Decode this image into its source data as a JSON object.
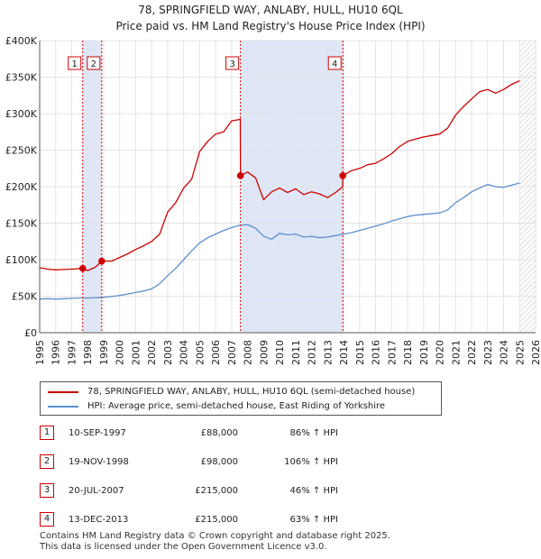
{
  "header": {
    "title_line1": "78, SPRINGFIELD WAY, ANLABY, HULL, HU10 6QL",
    "title_line2": "Price paid vs. HM Land Registry's House Price Index (HPI)"
  },
  "chart_data": {
    "type": "line",
    "title": "78, SPRINGFIELD WAY, ANLABY, HULL, HU10 6QL",
    "subtitle": "Price paid vs. HM Land Registry's House Price Index (HPI)",
    "xlabel": "",
    "ylabel": "",
    "xlim": [
      1995,
      2026
    ],
    "ylim": [
      0,
      400000
    ],
    "x_ticks": [
      1995,
      1996,
      1997,
      1998,
      1999,
      2000,
      2001,
      2002,
      2003,
      2004,
      2005,
      2006,
      2007,
      2008,
      2009,
      2010,
      2011,
      2012,
      2013,
      2014,
      2015,
      2016,
      2017,
      2018,
      2019,
      2020,
      2021,
      2022,
      2023,
      2024,
      2025,
      2026
    ],
    "y_ticks": [
      {
        "value": 0,
        "label": "£0"
      },
      {
        "value": 50000,
        "label": "£50K"
      },
      {
        "value": 100000,
        "label": "£100K"
      },
      {
        "value": 150000,
        "label": "£150K"
      },
      {
        "value": 200000,
        "label": "£200K"
      },
      {
        "value": 250000,
        "label": "£250K"
      },
      {
        "value": 300000,
        "label": "£300K"
      },
      {
        "value": 350000,
        "label": "£350K"
      },
      {
        "value": 400000,
        "label": "£400K"
      }
    ],
    "grid": true,
    "shaded_periods": [
      [
        1997.69,
        1998.88
      ],
      [
        2007.55,
        2013.95
      ]
    ],
    "future_hatch_from": 2025.0,
    "series": [
      {
        "name": "78, SPRINGFIELD WAY, ANLABY, HULL, HU10 6QL (semi-detached house)",
        "color": "#cc0000",
        "x": [
          1995.0,
          1995.5,
          1996.0,
          1996.5,
          1997.0,
          1997.69,
          1998.0,
          1998.5,
          1998.88,
          1999.5,
          2000.0,
          2000.5,
          2001.0,
          2001.5,
          2002.0,
          2002.5,
          2003.0,
          2003.5,
          2004.0,
          2004.5,
          2005.0,
          2005.5,
          2006.0,
          2006.5,
          2007.0,
          2007.5,
          2007.54,
          2007.55,
          2008.0,
          2008.5,
          2009.0,
          2009.5,
          2010.0,
          2010.5,
          2011.0,
          2011.5,
          2012.0,
          2012.5,
          2013.0,
          2013.5,
          2013.94,
          2013.95,
          2014.5,
          2015.0,
          2015.5,
          2016.0,
          2016.5,
          2017.0,
          2017.5,
          2018.0,
          2018.5,
          2019.0,
          2019.5,
          2020.0,
          2020.5,
          2021.0,
          2021.5,
          2022.0,
          2022.5,
          2023.0,
          2023.5,
          2024.0,
          2024.5,
          2025.0
        ],
        "values": [
          89000,
          87000,
          86000,
          86500,
          87000,
          88000,
          85000,
          90000,
          98000,
          98000,
          103000,
          108000,
          114000,
          119000,
          125000,
          135000,
          165000,
          178000,
          198000,
          210000,
          248000,
          262000,
          272000,
          275000,
          290000,
          292000,
          293000,
          215000,
          220000,
          212000,
          182000,
          193000,
          198000,
          192000,
          197000,
          189000,
          193000,
          190000,
          185000,
          192000,
          200000,
          215000,
          222000,
          225000,
          230000,
          232000,
          238000,
          245000,
          255000,
          262000,
          265000,
          268000,
          270000,
          272000,
          280000,
          298000,
          310000,
          320000,
          330000,
          333000,
          328000,
          333000,
          340000,
          345000
        ]
      },
      {
        "name": "HPI: Average price, semi-detached house, East Riding of Yorkshire",
        "color": "#5b8fce",
        "x": [
          1995.0,
          1995.5,
          1996.0,
          1996.5,
          1997.0,
          1997.5,
          1998.0,
          1998.5,
          1999.0,
          1999.5,
          2000.0,
          2000.5,
          2001.0,
          2001.5,
          2002.0,
          2002.5,
          2003.0,
          2003.5,
          2004.0,
          2004.5,
          2005.0,
          2005.5,
          2006.0,
          2006.5,
          2007.0,
          2007.5,
          2008.0,
          2008.5,
          2009.0,
          2009.5,
          2010.0,
          2010.5,
          2011.0,
          2011.5,
          2012.0,
          2012.5,
          2013.0,
          2013.5,
          2014.0,
          2014.5,
          2015.0,
          2015.5,
          2016.0,
          2016.5,
          2017.0,
          2017.5,
          2018.0,
          2018.5,
          2019.0,
          2019.5,
          2020.0,
          2020.5,
          2021.0,
          2021.5,
          2022.0,
          2022.5,
          2023.0,
          2023.5,
          2024.0,
          2024.5,
          2025.0
        ],
        "values": [
          46000,
          46500,
          46000,
          46500,
          47000,
          47500,
          47500,
          48000,
          48500,
          49500,
          51000,
          53000,
          55000,
          57000,
          60000,
          67000,
          78000,
          88000,
          100000,
          112000,
          123000,
          130000,
          135000,
          140000,
          144000,
          147000,
          148000,
          143000,
          132000,
          128000,
          136000,
          134000,
          135000,
          131000,
          132000,
          130000,
          131000,
          133000,
          135000,
          137000,
          140000,
          143000,
          146000,
          149000,
          153000,
          156000,
          159000,
          161000,
          162000,
          163000,
          164000,
          168000,
          178000,
          185000,
          193000,
          198000,
          203000,
          200000,
          199000,
          202000,
          205000
        ]
      }
    ],
    "transactions": [
      {
        "marker": "1",
        "x": 1997.69,
        "value": 88000
      },
      {
        "marker": "2",
        "x": 1998.88,
        "value": 98000
      },
      {
        "marker": "3",
        "x": 2007.55,
        "value": 215000
      },
      {
        "marker": "4",
        "x": 2013.95,
        "value": 215000
      }
    ]
  },
  "legend": {
    "property_label": "78, SPRINGFIELD WAY, ANLABY, HULL, HU10 6QL (semi-detached house)",
    "hpi_label": "HPI: Average price, semi-detached house, East Riding of Yorkshire",
    "property_color": "#cc0000",
    "hpi_color": "#5b8fce"
  },
  "transactions_table": [
    {
      "num": "1",
      "date": "10-SEP-1997",
      "price": "£88,000",
      "hpi": "86% ↑ HPI"
    },
    {
      "num": "2",
      "date": "19-NOV-1998",
      "price": "£98,000",
      "hpi": "106% ↑ HPI"
    },
    {
      "num": "3",
      "date": "20-JUL-2007",
      "price": "£215,000",
      "hpi": "46% ↑ HPI"
    },
    {
      "num": "4",
      "date": "13-DEC-2013",
      "price": "£215,000",
      "hpi": "63% ↑ HPI"
    }
  ],
  "footer": {
    "line1": "Contains HM Land Registry data © Crown copyright and database right 2025.",
    "line2": "This data is licensed under the Open Government Licence v3.0."
  }
}
